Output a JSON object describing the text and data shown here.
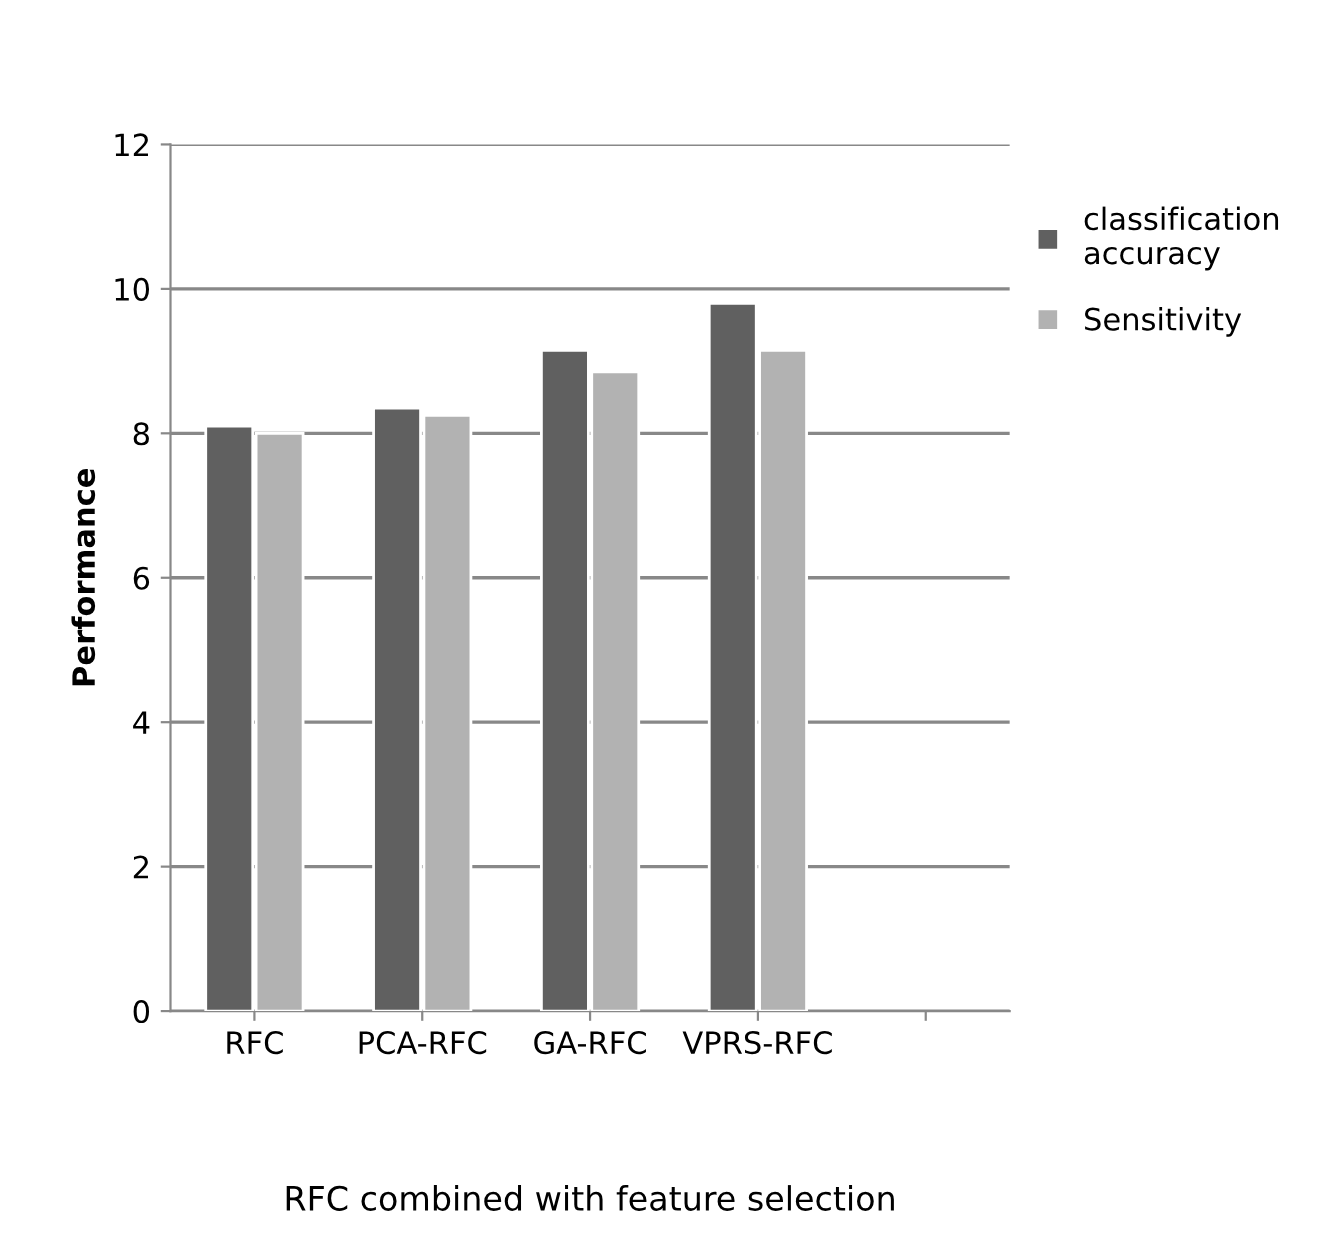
{
  "chart_data": {
    "type": "bar",
    "xlabel": "RFC combined with feature selection",
    "ylabel": "Performance",
    "categories": [
      "RFC",
      "PCA-RFC",
      "GA-RFC",
      "VPRS-RFC",
      null
    ],
    "series": [
      {
        "name": "classification accuracy",
        "color": "#606060",
        "values": [
          8.1,
          8.35,
          9.15,
          9.8,
          null
        ]
      },
      {
        "name": "Sensitivity",
        "color": "#b2b2b2",
        "values": [
          8.0,
          8.25,
          8.85,
          9.15,
          null
        ]
      }
    ],
    "ylim": [
      0,
      12
    ],
    "yticks": [
      0,
      2,
      4,
      6,
      8,
      10,
      12
    ],
    "grid": "y",
    "legend": "right"
  }
}
